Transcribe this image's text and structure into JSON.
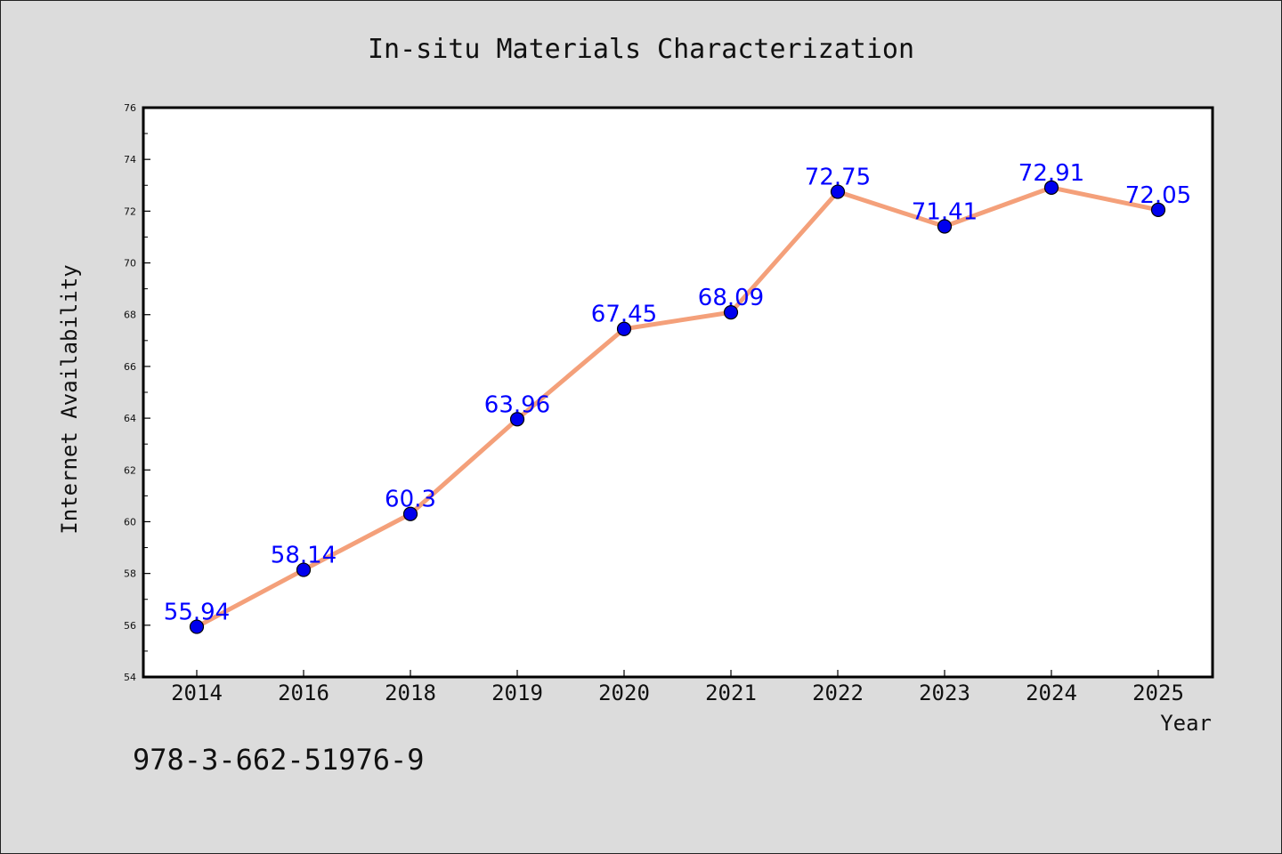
{
  "chart_data": {
    "type": "line",
    "title": "In-situ Materials Characterization",
    "xlabel": "Year",
    "ylabel": "Internet Availability",
    "categories": [
      "2014",
      "2016",
      "2018",
      "2019",
      "2020",
      "2021",
      "2022",
      "2023",
      "2024",
      "2025"
    ],
    "values": [
      55.94,
      58.14,
      60.3,
      63.96,
      67.45,
      68.09,
      72.75,
      71.41,
      72.91,
      72.05
    ],
    "data_labels": [
      "55.94",
      "58.14",
      "60.3",
      "63.96",
      "67.45",
      "68.09",
      "72.75",
      "71.41",
      "72.91",
      "72.05"
    ],
    "ylim": [
      54,
      76
    ],
    "yticks": [
      "54",
      "56",
      "58",
      "60",
      "62",
      "64",
      "66",
      "68",
      "70",
      "72",
      "74",
      "76"
    ],
    "grid": false,
    "line_color": "#f4a07a",
    "marker_color": "#0000ee",
    "label_color": "#0000ff"
  },
  "footer_text": "978-3-662-51976-9"
}
